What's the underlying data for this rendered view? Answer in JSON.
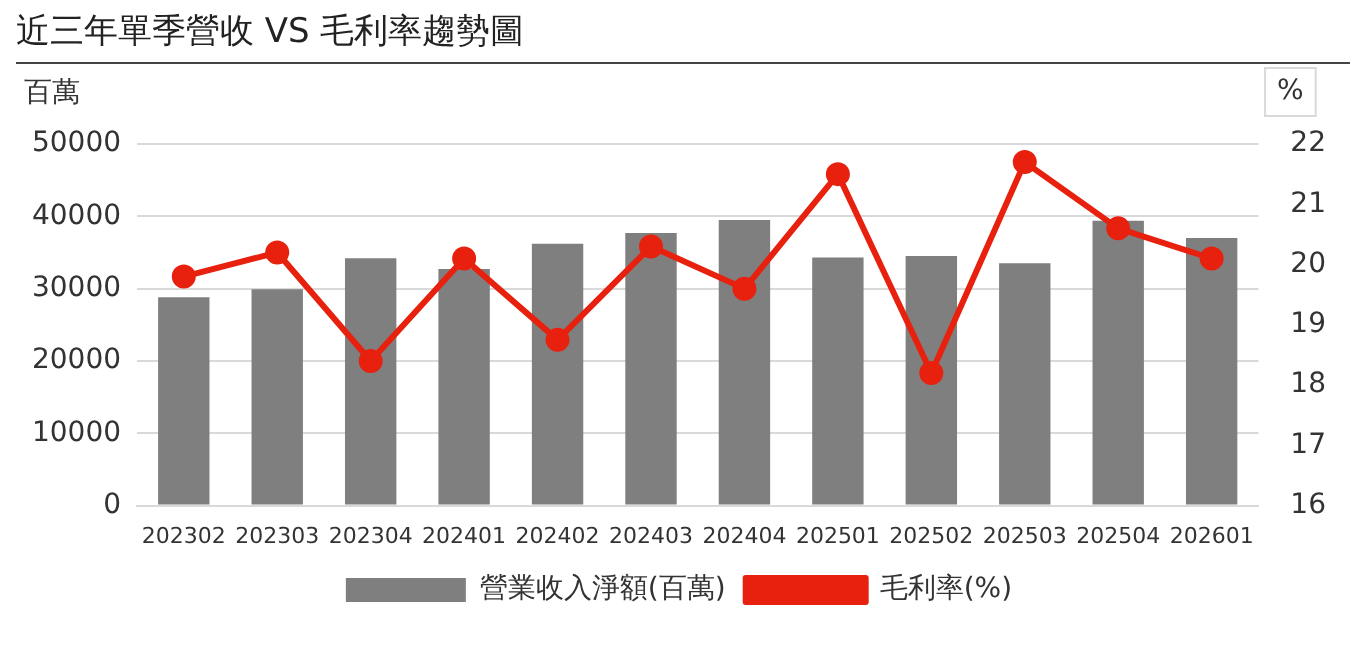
{
  "chart_data": {
    "type": "bar",
    "title": "近三年單季營收 VS 毛利率趨勢圖",
    "ylabel": "百萬",
    "y2label": "%",
    "categories": [
      "202302",
      "202303",
      "202304",
      "202401",
      "202402",
      "202403",
      "202404",
      "202501",
      "202502",
      "202503",
      "202504",
      "202601"
    ],
    "series": [
      {
        "name": "營業收入淨額(百萬)",
        "color": "#7f7f7f",
        "values": [
          28800,
          29900,
          34200,
          32700,
          36200,
          37700,
          39500,
          34300,
          34500,
          33500,
          39400,
          37000
        ]
      },
      {
        "name": "毛利率(%)",
        "type": "line",
        "axis": "y2",
        "color": "#e8200e",
        "marker": "circle",
        "values": [
          19.8,
          20.2,
          18.4,
          20.1,
          18.75,
          20.3,
          19.6,
          21.5,
          18.2,
          21.7,
          20.6,
          20.1
        ]
      }
    ],
    "ylim": [
      0,
      50000
    ],
    "yticks": [
      0,
      10000,
      20000,
      30000,
      40000,
      50000
    ],
    "y2lim": [
      16,
      22
    ],
    "y2ticks": [
      16,
      17,
      18,
      19,
      20,
      21,
      22
    ],
    "grid": "y",
    "legend": "bottom"
  }
}
